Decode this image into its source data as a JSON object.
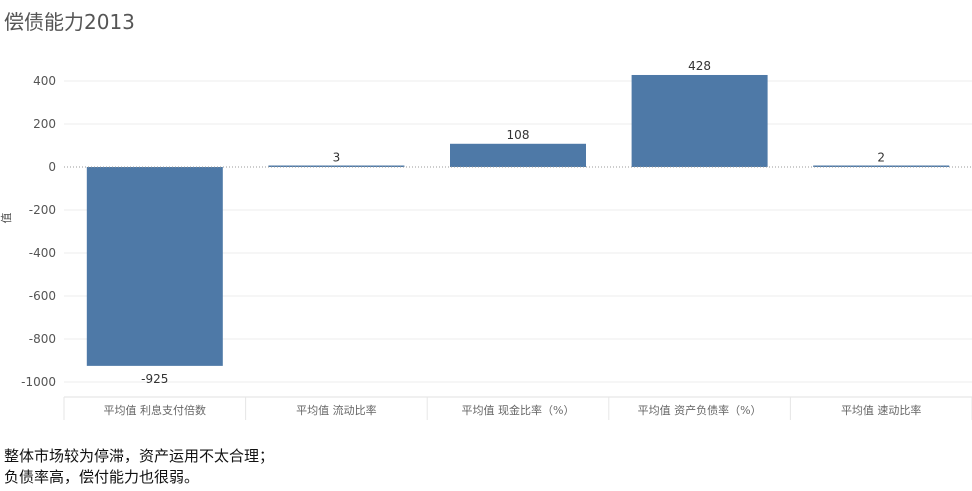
{
  "chart_data": {
    "type": "bar",
    "title": "偿债能力2013",
    "ylabel": "值",
    "xlabel": "",
    "categories": [
      "平均值 利息支付倍数",
      "平均值 流动比率",
      "平均值 现金比率（%）",
      "平均值 资产负债率（%）",
      "平均值 速动比率"
    ],
    "values": [
      -925,
      3,
      108,
      428,
      2
    ],
    "data_labels": [
      "-925",
      "3",
      "108",
      "428",
      "2"
    ],
    "ylim": [
      -1000,
      400
    ],
    "yticks": [
      400,
      200,
      0,
      -200,
      -400,
      -600,
      -800,
      -1000
    ],
    "grid": true,
    "bar_color": "#4e79a7"
  },
  "notes": [
    "整体市场较为停滞，资产运用不太合理；",
    "负债率高，偿付能力也很弱。"
  ]
}
